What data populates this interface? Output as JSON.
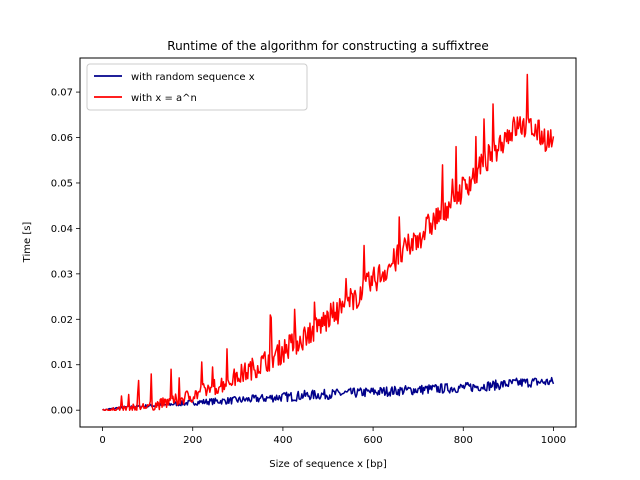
{
  "chart_data": {
    "type": "line",
    "title": "Runtime of the algorithm for constructing a suffixtree",
    "xlabel": "Size of sequence x [bp]",
    "ylabel": "Time [s]",
    "xlim": [
      -50,
      1050
    ],
    "ylim": [
      -0.0037,
      0.0775
    ],
    "x_ticks": [
      0,
      200,
      400,
      600,
      800,
      1000
    ],
    "x_tick_labels": [
      "0",
      "200",
      "400",
      "600",
      "800",
      "1000"
    ],
    "y_ticks": [
      0.0,
      0.01,
      0.02,
      0.03,
      0.04,
      0.05,
      0.06,
      0.07
    ],
    "y_tick_labels": [
      "0.00",
      "0.01",
      "0.02",
      "0.03",
      "0.04",
      "0.05",
      "0.06",
      "0.07"
    ],
    "grid": false,
    "legend_position": "top-left",
    "series": [
      {
        "name": "with random sequence x",
        "color": "#00008b",
        "x": [
          0,
          20,
          40,
          60,
          80,
          100,
          120,
          140,
          160,
          180,
          200,
          220,
          240,
          260,
          280,
          300,
          320,
          340,
          360,
          380,
          400,
          420,
          440,
          460,
          480,
          500,
          520,
          540,
          560,
          580,
          600,
          620,
          640,
          660,
          680,
          700,
          720,
          740,
          760,
          780,
          800,
          820,
          840,
          860,
          880,
          900,
          920,
          940,
          960,
          980,
          1000
        ],
        "y": [
          0.0,
          0.0003,
          0.0006,
          0.0007,
          0.0008,
          0.0009,
          0.0011,
          0.0012,
          0.0014,
          0.0015,
          0.0017,
          0.0018,
          0.0019,
          0.002,
          0.0021,
          0.0022,
          0.0023,
          0.0025,
          0.0026,
          0.0028,
          0.0029,
          0.003,
          0.0032,
          0.0033,
          0.0034,
          0.0035,
          0.0036,
          0.0037,
          0.0038,
          0.0039,
          0.004,
          0.0041,
          0.0042,
          0.0043,
          0.0044,
          0.0045,
          0.0046,
          0.0047,
          0.0048,
          0.0049,
          0.005,
          0.0051,
          0.0053,
          0.0054,
          0.0056,
          0.0058,
          0.006,
          0.0061,
          0.0062,
          0.0062,
          0.0062
        ],
        "noise_band": 0.0022
      },
      {
        "name": "with x = a^n",
        "color": "#ff0000",
        "x": [
          0,
          20,
          40,
          60,
          80,
          100,
          120,
          140,
          160,
          180,
          200,
          220,
          240,
          260,
          280,
          300,
          320,
          340,
          360,
          380,
          400,
          420,
          440,
          460,
          480,
          500,
          520,
          540,
          560,
          580,
          600,
          620,
          640,
          660,
          680,
          700,
          720,
          740,
          760,
          780,
          800,
          820,
          840,
          860,
          880,
          900,
          920,
          940,
          960,
          980,
          1000
        ],
        "y": [
          0.0,
          0.0001,
          0.0002,
          0.0004,
          0.0006,
          0.0009,
          0.0012,
          0.0016,
          0.0021,
          0.0027,
          0.0033,
          0.004,
          0.0048,
          0.0056,
          0.0065,
          0.0075,
          0.0085,
          0.0096,
          0.0107,
          0.0119,
          0.0131,
          0.0144,
          0.0157,
          0.0171,
          0.0186,
          0.0201,
          0.0216,
          0.0232,
          0.0249,
          0.0266,
          0.0284,
          0.0302,
          0.0321,
          0.034,
          0.036,
          0.038,
          0.0401,
          0.0422,
          0.0444,
          0.0466,
          0.0489,
          0.0512,
          0.0536,
          0.056,
          0.0585,
          0.061,
          0.0625,
          0.0625,
          0.0615,
          0.06,
          0.059
        ],
        "noise_band": 0.006
      }
    ]
  }
}
